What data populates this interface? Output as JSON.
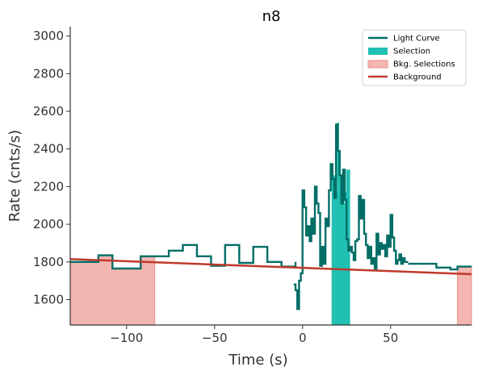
{
  "chart_data": {
    "type": "line",
    "title": "n8",
    "xlabel": "Time (s)",
    "ylabel": "Rate (cnts/s)",
    "xlim": [
      -132,
      96
    ],
    "ylim": [
      1465,
      3050
    ],
    "xticks": [
      -100,
      -50,
      0,
      50
    ],
    "yticks": [
      1600,
      1800,
      2000,
      2200,
      2400,
      2600,
      2800,
      3000
    ],
    "xtick_labels": [
      "−100",
      "−50",
      "0",
      "50"
    ],
    "ytick_labels": [
      "1600",
      "1800",
      "2000",
      "2200",
      "2400",
      "2600",
      "2800",
      "3000"
    ],
    "grid": false,
    "legend_position": "top-right",
    "colors": {
      "light_curve": "#016e66",
      "selection": "#20c0b2",
      "bkg_selection_fill": "#f4b6b0",
      "bkg_selection_edge": "#ee8f86",
      "background": "#c0392b"
    },
    "legend": [
      {
        "label": "Light Curve",
        "kind": "line",
        "color_key": "light_curve"
      },
      {
        "label": "Selection",
        "kind": "patch",
        "color_key": "selection"
      },
      {
        "label": "Bkg. Selections",
        "kind": "patch",
        "color_key": "bkg_selection_fill"
      },
      {
        "label": "Background",
        "kind": "line",
        "color_key": "background"
      }
    ],
    "light_curve_low": {
      "edges": [
        -132,
        -116,
        -108,
        -100,
        -92,
        -84,
        -76,
        -68,
        -60,
        -52,
        -44,
        -36,
        -28,
        -20,
        -12,
        -4
      ],
      "rates": [
        1800,
        1835,
        1765,
        1765,
        1830,
        1830,
        1860,
        1890,
        1830,
        1780,
        1890,
        1795,
        1880,
        1800,
        1775,
        1800
      ]
    },
    "light_curve_high": {
      "edges": [
        -5,
        -4,
        -3,
        -2,
        -1,
        0,
        1,
        2,
        3,
        4,
        5,
        6,
        7,
        8,
        9,
        10,
        11,
        12,
        13,
        14,
        15,
        16,
        17,
        18,
        19,
        20,
        21,
        22,
        23,
        24,
        25,
        26,
        27,
        28,
        29,
        30,
        31,
        32,
        33,
        34,
        35,
        36,
        37,
        38,
        39,
        40,
        41,
        42,
        43,
        44,
        45,
        46,
        47,
        48,
        49,
        50,
        51,
        52,
        53,
        54,
        55,
        56,
        57,
        58,
        59,
        60
      ],
      "rates": [
        1680,
        1650,
        1550,
        1700,
        1740,
        2180,
        2090,
        1940,
        1990,
        1910,
        2030,
        1950,
        2200,
        2110,
        2060,
        1780,
        1880,
        1790,
        2030,
        1990,
        2180,
        2320,
        2240,
        2140,
        2530,
        2390,
        2260,
        2110,
        2290,
        2130,
        1920,
        1860,
        1880,
        1850,
        1810,
        1910,
        1920,
        2150,
        2030,
        2130,
        1950,
        1890,
        1820,
        1880,
        1790,
        1820,
        1760,
        1950,
        1840,
        1900,
        1870,
        1890,
        1830,
        1940,
        1880,
        2050,
        1930,
        1860,
        1790,
        1810,
        1840,
        1790,
        1820,
        1800,
        1800
      ]
    },
    "light_curve_tail": {
      "edges": [
        60,
        68,
        76,
        84,
        88,
        96
      ],
      "rates": [
        1790,
        1790,
        1770,
        1760,
        1775
      ]
    },
    "selection": {
      "x0": 16.5,
      "x1": 27,
      "y0": 1465,
      "values": [
        2320,
        2260,
        2170,
        2540,
        2390,
        2160,
        2110,
        2170,
        2290,
        2290
      ]
    },
    "bkg_selections": [
      {
        "x0": -132,
        "x1": -84,
        "y0": 1465,
        "edges": [
          -132,
          -116,
          -108,
          -100,
          -92,
          -84
        ],
        "values": [
          1800,
          1835,
          1765,
          1765,
          1830
        ]
      },
      {
        "x0": 88,
        "x1": 96,
        "y0": 1465,
        "edges": [
          88,
          96
        ],
        "values": [
          1775
        ]
      }
    ],
    "background_line": {
      "x": [
        -132,
        96
      ],
      "y": [
        1815,
        1735
      ]
    }
  }
}
